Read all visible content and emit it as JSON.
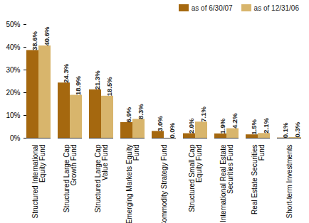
{
  "chart_data": {
    "type": "bar",
    "categories": [
      "Structured International Equity Fund",
      "Structured Large Cap Growth Fund",
      "Structured Large Cap Value Fund",
      "Emerging Markets Equity Fund",
      "Commodity Strategy Fund",
      "Structured Small Cap Equity Fund",
      "International Real Estate Securities Fund",
      "Real Estate Securities Fund",
      "Short-term Investments"
    ],
    "series": [
      {
        "name": "as of 6/30/07",
        "color": "#a5680f",
        "values": [
          38.6,
          24.3,
          21.3,
          6.9,
          3.0,
          2.0,
          1.9,
          1.5,
          0.1
        ],
        "value_labels": [
          "38.6%",
          "24.3%",
          "21.3%",
          "6.9%",
          "3.0%",
          "2.0%",
          "1.9%",
          "1.5%",
          "0.1%"
        ]
      },
      {
        "name": "as of 12/31/06",
        "color": "#d8b56c",
        "values": [
          40.6,
          18.9,
          18.5,
          8.3,
          0.0,
          7.1,
          4.2,
          2.1,
          0.3
        ],
        "value_labels": [
          "40.6%",
          "18.9%",
          "18.5%",
          "8.3%",
          "0.0%",
          "7.1%",
          "4.2%",
          "2.1%",
          "0.3%"
        ]
      }
    ],
    "ylim": [
      0,
      50
    ],
    "yticks": [
      {
        "value": 0,
        "label": "0%"
      },
      {
        "value": 10,
        "label": "10%"
      },
      {
        "value": 20,
        "label": "20%"
      },
      {
        "value": 30,
        "label": "30%"
      },
      {
        "value": 40,
        "label": "40%"
      },
      {
        "value": 50,
        "label": "50%"
      }
    ],
    "data_labels": true,
    "legend": "top-right",
    "grid": false
  }
}
